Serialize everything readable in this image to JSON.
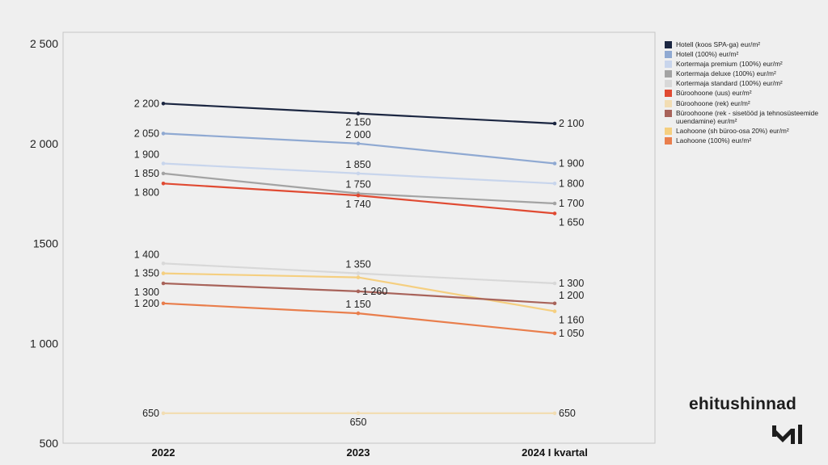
{
  "chart_data": {
    "type": "line",
    "categories": [
      "2022",
      "2023",
      "2024 I kvartal"
    ],
    "ylim": [
      500,
      2500
    ],
    "yticks": [
      500,
      1000,
      1500,
      2000,
      2500
    ],
    "ytick_labels": [
      "500",
      "1 000",
      "1500",
      "2 000",
      "2 500"
    ],
    "grid": false,
    "legend_position": "right",
    "series": [
      {
        "name": "Hotell (koos SPA-ga) eur/m²",
        "color": "#1b2641",
        "values": [
          2200,
          2150,
          2100
        ],
        "labels": [
          "2 200",
          "2 150",
          "2 100"
        ]
      },
      {
        "name": "Hotell (100%) eur/m²",
        "color": "#8fa9d2",
        "values": [
          2050,
          2000,
          1900
        ],
        "labels": [
          "2 050",
          "2 000",
          "1 900"
        ]
      },
      {
        "name": "Kortermaja premium (100%) eur/m²",
        "color": "#c8d5ec",
        "values": [
          1900,
          1850,
          1800
        ],
        "labels": [
          "1 900",
          "1 850",
          "1 800"
        ]
      },
      {
        "name": "Kortermaja deluxe (100%) eur/m²",
        "color": "#a3a3a3",
        "values": [
          1850,
          1750,
          1700
        ],
        "labels": [
          "1 850",
          "1 750",
          "1 700"
        ]
      },
      {
        "name": "Kortermaja standard (100%) eur/m²",
        "color": "#d8d8d8",
        "values": [
          1400,
          1350,
          1300
        ],
        "labels": [
          "1 400",
          "1 350",
          "1 300"
        ]
      },
      {
        "name": "Büroohoone (uus) eur/m²",
        "color": "#e04a32",
        "values": [
          1800,
          1740,
          1650
        ],
        "labels": [
          "1 800",
          "1 740",
          "1 650"
        ]
      },
      {
        "name": "Büroohoone (rek) eur/m²",
        "color": "#f2ddb3",
        "values": [
          650,
          650,
          650
        ],
        "labels": [
          "650",
          "650",
          "650"
        ]
      },
      {
        "name": "Büroohoone (rek - sisetööd ja tehnosüsteemide uuendamine) eur/m²",
        "color": "#a8635a",
        "values": [
          1300,
          1260,
          1200
        ],
        "labels": [
          "1 300",
          "1 260",
          "1 200"
        ]
      },
      {
        "name": "Laohoone (sh büroo-osa 20%) eur/m²",
        "color": "#f5cf80",
        "values": [
          1350,
          1330,
          1160
        ],
        "labels": [
          "1 350",
          "",
          "1 160"
        ]
      },
      {
        "name": "Laohoone (100%) eur/m²",
        "color": "#e97e4c",
        "values": [
          1200,
          1150,
          1050
        ],
        "labels": [
          "1 200",
          "1 150",
          "1 050"
        ]
      }
    ]
  },
  "brand": {
    "name": "ehitushinnad"
  }
}
